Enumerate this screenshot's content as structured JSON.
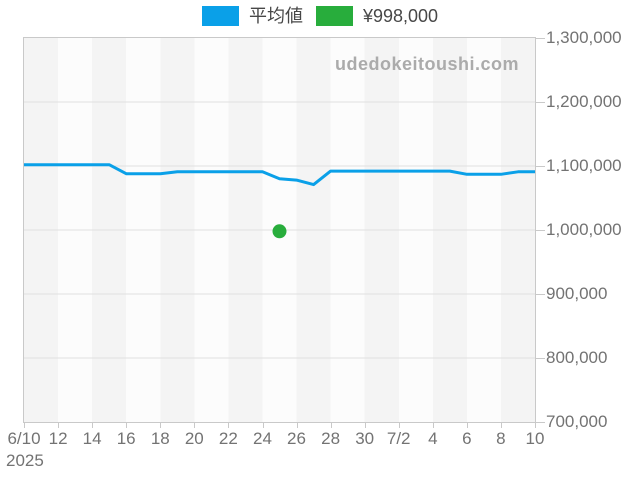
{
  "page": {
    "watermark": "udedokeitoushi.com"
  },
  "legend": {
    "items": [
      {
        "label": "平均値",
        "color": "#0aa0e8"
      },
      {
        "label": "¥998,000",
        "color": "#28ad3c"
      }
    ]
  },
  "chart_data": {
    "type": "line",
    "title": "",
    "xlabel": "",
    "ylabel": "",
    "x": [
      "6/10",
      "6/11",
      "6/12",
      "6/13",
      "6/14",
      "6/15",
      "6/16",
      "6/17",
      "6/18",
      "6/19",
      "6/20",
      "6/21",
      "6/22",
      "6/23",
      "6/24",
      "6/25",
      "6/26",
      "6/27",
      "6/28",
      "6/29",
      "6/30",
      "7/1",
      "7/2",
      "7/3",
      "7/4",
      "7/5",
      "7/6",
      "7/7",
      "7/8",
      "7/9",
      "7/10"
    ],
    "series": [
      {
        "name": "平均値",
        "color": "#0aa0e8",
        "values": [
          1102000,
          1102000,
          1102000,
          1102000,
          1102000,
          1102000,
          1088000,
          1088000,
          1088000,
          1091000,
          1091000,
          1091000,
          1091000,
          1091000,
          1091000,
          1080000,
          1078000,
          1071000,
          1092000,
          1092000,
          1092000,
          1092000,
          1092000,
          1092000,
          1092000,
          1092000,
          1087000,
          1087000,
          1087000,
          1091000,
          1091000
        ]
      }
    ],
    "points": [
      {
        "x": "6/25",
        "x_index": 15,
        "value": 998000,
        "label": "¥998,000",
        "color": "#28ad3c"
      }
    ],
    "y_axis": {
      "position": "right",
      "min": 700000,
      "max": 1300000,
      "tick_step": 100000,
      "labels": [
        "1,300,000",
        "1,200,000",
        "1,100,000",
        "1,000,000",
        "900,000",
        "800,000",
        "700,000"
      ]
    },
    "x_axis": {
      "tick_labels": [
        "6/10",
        "12",
        "14",
        "16",
        "18",
        "20",
        "22",
        "24",
        "26",
        "28",
        "30",
        "7/2",
        "4",
        "6",
        "8",
        "10"
      ],
      "year_label": "2025"
    },
    "style": {
      "stripe_color_a": "#f4f4f4",
      "stripe_color_b": "#fcfcfc",
      "grid_color": "#e0e0e0",
      "frame_color": "#c9c9c9",
      "grid": true,
      "legend_position": "top"
    }
  }
}
